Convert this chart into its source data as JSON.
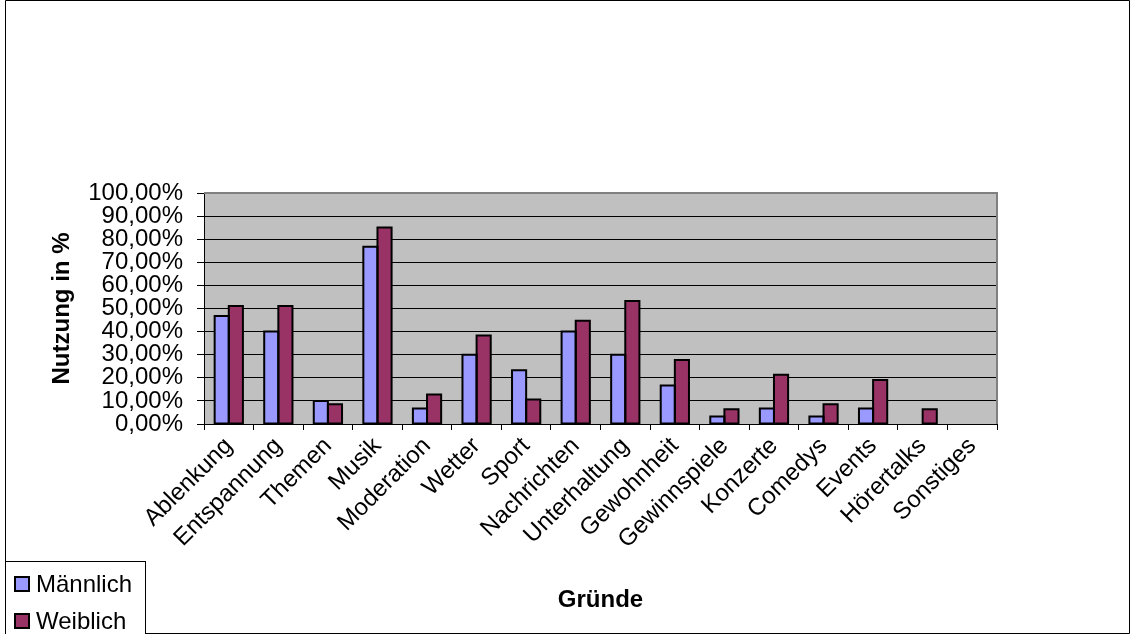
{
  "chart_data": {
    "type": "bar",
    "xlabel": "Gründe",
    "ylabel": "Nutzung in %",
    "categories": [
      "Ablenkung",
      "Entspannung",
      "Themen",
      "Musik",
      "Moderation",
      "Wetter",
      "Sport",
      "Nachrichten",
      "Unterhaltung",
      "Gewohnheit",
      "Gewinnspiele",
      "Konzerte",
      "Comedys",
      "Events",
      "Hörertalks",
      "Sonstiges"
    ],
    "series": [
      {
        "name": "Männlich",
        "color": "#9999ff",
        "values": [
          46.7,
          40,
          10,
          76.7,
          6.7,
          30,
          23.3,
          40,
          30,
          16.7,
          3.3,
          6.7,
          3.3,
          6.7,
          0,
          0
        ]
      },
      {
        "name": "Weiblich",
        "color": "#993366",
        "values": [
          51.1,
          51.1,
          8.5,
          85.1,
          12.8,
          38.3,
          10.6,
          44.7,
          53.2,
          27.7,
          6.4,
          21.3,
          8.5,
          19.1,
          6.4,
          0
        ]
      }
    ],
    "ylim": [
      0,
      100
    ],
    "yticks": [
      {
        "value": 0,
        "label": "0,00%"
      },
      {
        "value": 10,
        "label": "10,00%"
      },
      {
        "value": 20,
        "label": "20,00%"
      },
      {
        "value": 30,
        "label": "30,00%"
      },
      {
        "value": 40,
        "label": "40,00%"
      },
      {
        "value": 50,
        "label": "50,00%"
      },
      {
        "value": 60,
        "label": "60,00%"
      },
      {
        "value": 70,
        "label": "70,00%"
      },
      {
        "value": 80,
        "label": "80,00%"
      },
      {
        "value": 90,
        "label": "90,00%"
      },
      {
        "value": 100,
        "label": "100,00%"
      }
    ],
    "grid": "y",
    "legend": "bottom left"
  }
}
